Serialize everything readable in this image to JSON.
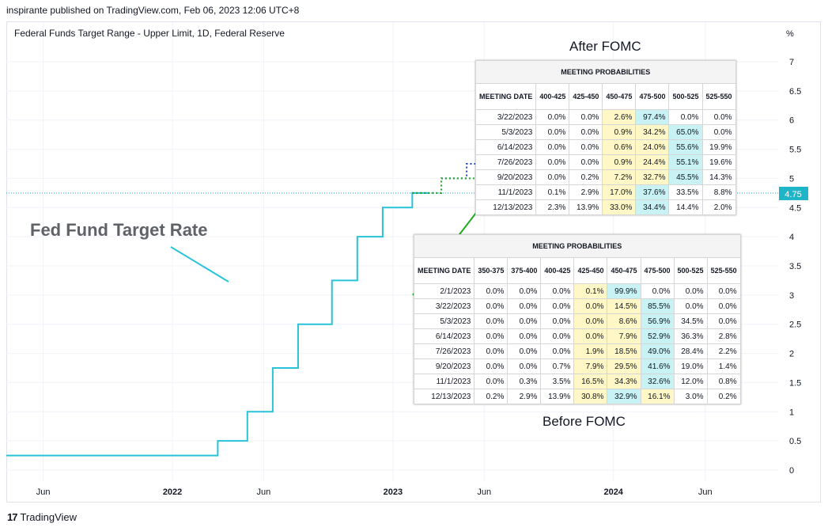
{
  "header": {
    "published": "inspirante published on TradingView.com, Feb 06, 2023 12:06 UTC+8",
    "symbol": "Federal Funds Target Range - Upper Limit, 1D, Federal Reserve"
  },
  "annotations": {
    "after_fomc": "After FOMC",
    "before_fomc": "Before FOMC",
    "fed_fund": "Fed Fund Target Rate"
  },
  "price_label": "4.75",
  "footer": {
    "logo_mark": "17",
    "logo_text": "TradingView"
  },
  "colors": {
    "line": "#29c3d9",
    "current": "#1eb5c9",
    "after": "#2244cc",
    "before": "#22aa22",
    "yellow": "#fff8c6",
    "cyan": "#c8f2f4"
  },
  "chart_data": {
    "type": "line",
    "title": "Federal Funds Target Range - Upper Limit, 1D, Federal Reserve",
    "ylabel": "%",
    "ylim": [
      0,
      7
    ],
    "yticks": [
      "0",
      "0.5",
      "1",
      "1.5",
      "2",
      "2.5",
      "3",
      "3.5",
      "4",
      "4.5",
      "5",
      "5.5",
      "6",
      "6.5",
      "7"
    ],
    "xticks": [
      {
        "label": "Jun",
        "date": "2021-06-01"
      },
      {
        "label": "2022",
        "date": "2022-01-01"
      },
      {
        "label": "Jun",
        "date": "2022-06-01"
      },
      {
        "label": "2023",
        "date": "2023-01-01"
      },
      {
        "label": "Jun",
        "date": "2023-06-01"
      },
      {
        "label": "2024",
        "date": "2024-01-01"
      },
      {
        "label": "Jun",
        "date": "2024-06-01"
      }
    ],
    "xlim": [
      "2021-04-01",
      "2024-10-01"
    ],
    "series": [
      {
        "x": [
          "2021-04-01",
          "2022-03-17",
          "2022-05-05",
          "2022-06-16",
          "2022-07-28",
          "2022-09-22",
          "2022-11-03",
          "2022-12-15",
          "2023-02-02"
        ],
        "values": [
          0.25,
          0.5,
          1.0,
          1.75,
          2.5,
          3.25,
          4.0,
          4.5,
          4.75
        ]
      }
    ],
    "projections": [
      {
        "name": "After FOMC",
        "x": [
          "2023-02-02",
          "2023-03-22",
          "2023-05-03",
          "2023-06-14",
          "2023-07-26",
          "2023-09-20",
          "2023-11-01",
          "2023-12-13",
          "2023-12-31"
        ],
        "values": [
          4.75,
          5.0,
          5.25,
          5.25,
          5.25,
          5.25,
          5.25,
          5.0,
          5.0
        ]
      },
      {
        "name": "Before FOMC",
        "x": [
          "2023-02-02",
          "2023-03-22",
          "2023-05-03",
          "2023-06-14",
          "2023-07-26",
          "2023-09-20",
          "2023-11-01",
          "2023-12-13",
          "2023-12-31"
        ],
        "values": [
          4.75,
          5.0,
          5.0,
          5.0,
          5.0,
          5.0,
          5.0,
          4.75,
          4.75
        ]
      }
    ],
    "current_value": 4.75,
    "grid": true
  },
  "after_table": {
    "caption": "MEETING PROBABILITIES",
    "columns": [
      "MEETING DATE",
      "400-425",
      "425-450",
      "450-475",
      "475-500",
      "500-525",
      "525-550"
    ],
    "rows": [
      [
        "3/22/2023",
        "0.0%",
        "0.0%",
        "2.6%",
        "97.4%",
        "0.0%",
        "0.0%"
      ],
      [
        "5/3/2023",
        "0.0%",
        "0.0%",
        "0.9%",
        "34.2%",
        "65.0%",
        "0.0%"
      ],
      [
        "6/14/2023",
        "0.0%",
        "0.0%",
        "0.6%",
        "24.0%",
        "55.6%",
        "19.9%"
      ],
      [
        "7/26/2023",
        "0.0%",
        "0.0%",
        "0.9%",
        "24.4%",
        "55.1%",
        "19.6%"
      ],
      [
        "9/20/2023",
        "0.0%",
        "0.2%",
        "7.2%",
        "32.7%",
        "45.5%",
        "14.3%"
      ],
      [
        "11/1/2023",
        "0.1%",
        "2.9%",
        "17.0%",
        "37.6%",
        "33.5%",
        "8.8%"
      ],
      [
        "12/13/2023",
        "2.3%",
        "13.9%",
        "33.0%",
        "34.4%",
        "14.4%",
        "2.0%"
      ]
    ],
    "highlights": [
      [
        null,
        null,
        null,
        "y",
        "c",
        null,
        null
      ],
      [
        null,
        null,
        null,
        "y",
        "y",
        "c",
        null
      ],
      [
        null,
        null,
        null,
        "y",
        "y",
        "c",
        null
      ],
      [
        null,
        null,
        null,
        "y",
        "y",
        "c",
        null
      ],
      [
        null,
        null,
        null,
        "y",
        "y",
        "c",
        null
      ],
      [
        null,
        null,
        null,
        "y",
        "c",
        null,
        null
      ],
      [
        null,
        null,
        null,
        "y",
        "c",
        null,
        null
      ]
    ]
  },
  "before_table": {
    "caption": "MEETING PROBABILITIES",
    "columns": [
      "MEETING DATE",
      "350-375",
      "375-400",
      "400-425",
      "425-450",
      "450-475",
      "475-500",
      "500-525",
      "525-550"
    ],
    "rows": [
      [
        "2/1/2023",
        "0.0%",
        "0.0%",
        "0.0%",
        "0.1%",
        "99.9%",
        "0.0%",
        "0.0%",
        "0.0%"
      ],
      [
        "3/22/2023",
        "0.0%",
        "0.0%",
        "0.0%",
        "0.0%",
        "14.5%",
        "85.5%",
        "0.0%",
        "0.0%"
      ],
      [
        "5/3/2023",
        "0.0%",
        "0.0%",
        "0.0%",
        "0.0%",
        "8.6%",
        "56.9%",
        "34.5%",
        "0.0%"
      ],
      [
        "6/14/2023",
        "0.0%",
        "0.0%",
        "0.0%",
        "0.0%",
        "7.9%",
        "52.9%",
        "36.3%",
        "2.8%"
      ],
      [
        "7/26/2023",
        "0.0%",
        "0.0%",
        "0.0%",
        "1.9%",
        "18.5%",
        "49.0%",
        "28.4%",
        "2.2%"
      ],
      [
        "9/20/2023",
        "0.0%",
        "0.0%",
        "0.7%",
        "7.9%",
        "29.5%",
        "41.6%",
        "19.0%",
        "1.4%"
      ],
      [
        "11/1/2023",
        "0.0%",
        "0.3%",
        "3.5%",
        "16.5%",
        "34.3%",
        "32.6%",
        "12.0%",
        "0.8%"
      ],
      [
        "12/13/2023",
        "0.2%",
        "2.9%",
        "13.9%",
        "30.8%",
        "32.9%",
        "16.1%",
        "3.0%",
        "0.2%"
      ]
    ],
    "highlights": [
      [
        null,
        null,
        null,
        null,
        "y",
        "c",
        null,
        null,
        null
      ],
      [
        null,
        null,
        null,
        null,
        "y",
        "y",
        "c",
        null,
        null
      ],
      [
        null,
        null,
        null,
        null,
        "y",
        "y",
        "c",
        null,
        null
      ],
      [
        null,
        null,
        null,
        null,
        "y",
        "y",
        "c",
        null,
        null
      ],
      [
        null,
        null,
        null,
        null,
        "y",
        "y",
        "c",
        null,
        null
      ],
      [
        null,
        null,
        null,
        null,
        "y",
        "y",
        "c",
        null,
        null
      ],
      [
        null,
        null,
        null,
        null,
        "y",
        "y",
        "c",
        null,
        null
      ],
      [
        null,
        null,
        null,
        null,
        "y",
        "c",
        "y",
        null,
        null
      ]
    ]
  }
}
